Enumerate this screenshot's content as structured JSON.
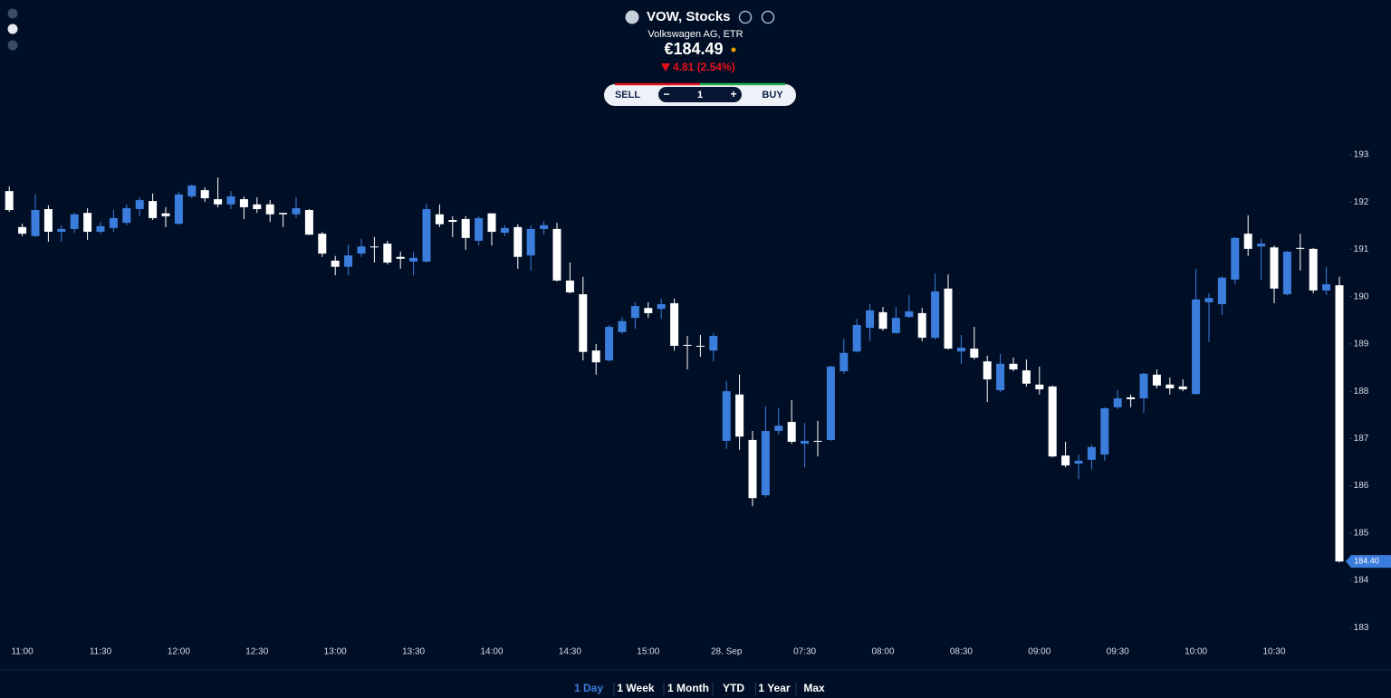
{
  "header": {
    "symbol": "VOW, Stocks",
    "name": "Volkswagen AG, ETR",
    "price": "€184.49",
    "change": "4.81 (2.54%)"
  },
  "trade": {
    "sell": "SELL",
    "minus": "−",
    "quantity": "1",
    "plus": "+",
    "buy": "BUY"
  },
  "ranges": [
    "1 Day",
    "1 Week",
    "1 Month",
    "YTD",
    "1 Year",
    "Max"
  ],
  "active_range": 0,
  "chart_data": {
    "type": "candlestick",
    "categories": [
      null,
      "11:00",
      null,
      null,
      null,
      null,
      null,
      "11:30",
      null,
      null,
      null,
      null,
      null,
      "12:00",
      null,
      null,
      null,
      null,
      null,
      "12:30",
      null,
      null,
      null,
      null,
      null,
      "13:00",
      null,
      null,
      null,
      null,
      null,
      "13:30",
      null,
      null,
      null,
      null,
      null,
      "14:00",
      null,
      null,
      null,
      null,
      null,
      "14:30",
      null,
      null,
      null,
      null,
      null,
      "15:00",
      null,
      null,
      null,
      null,
      null,
      "28. Sep",
      null,
      null,
      null,
      null,
      null,
      "07:30",
      null,
      null,
      null,
      null,
      null,
      "08:00",
      null,
      null,
      null,
      null,
      null,
      "08:30",
      null,
      null,
      null,
      null,
      null,
      "09:00",
      null,
      null,
      null,
      null,
      null,
      "09:30",
      null,
      null,
      null,
      null,
      null,
      "10:00",
      null,
      null,
      null,
      null,
      null,
      "10:30",
      null,
      null,
      null,
      null,
      null
    ],
    "open": [
      192.23,
      191.47,
      191.28,
      191.85,
      191.37,
      191.43,
      191.77,
      191.37,
      191.45,
      191.56,
      191.85,
      192.02,
      191.76,
      191.54,
      192.12,
      192.25,
      192.06,
      191.95,
      192.06,
      191.95,
      191.95,
      191.77,
      191.74,
      191.83,
      191.33,
      190.76,
      190.63,
      190.91,
      191.06,
      191.12,
      190.84,
      190.74,
      190.74,
      191.74,
      191.62,
      191.64,
      191.18,
      191.76,
      191.35,
      191.47,
      190.87,
      191.43,
      191.43,
      190.34,
      190.05,
      188.86,
      188.65,
      189.25,
      189.55,
      189.76,
      189.74,
      189.86,
      188.98,
      188.96,
      188.86,
      186.95,
      187.93,
      186.97,
      185.8,
      187.16,
      187.35,
      186.89,
      186.95,
      186.97,
      188.42,
      188.84,
      189.34,
      189.67,
      189.23,
      189.57,
      189.65,
      189.13,
      190.17,
      188.84,
      188.9,
      188.63,
      188.02,
      188.58,
      188.44,
      188.14,
      188.1,
      186.64,
      186.47,
      186.55,
      186.66,
      187.66,
      187.87,
      187.85,
      188.35,
      188.14,
      188.1,
      187.94,
      189.88,
      189.84,
      190.36,
      191.33,
      191.06,
      191.04,
      190.05,
      191.03,
      191.01,
      190.13,
      190.24
    ],
    "high": [
      192.33,
      191.54,
      192.16,
      191.93,
      191.51,
      191.77,
      191.87,
      191.58,
      191.83,
      191.95,
      192.1,
      192.18,
      191.89,
      192.21,
      192.37,
      192.31,
      192.52,
      192.23,
      192.12,
      192.1,
      192.04,
      191.77,
      192.1,
      191.85,
      191.37,
      190.86,
      191.1,
      191.22,
      191.26,
      191.18,
      190.95,
      190.95,
      191.97,
      191.95,
      191.7,
      191.7,
      191.7,
      191.76,
      191.51,
      191.53,
      191.51,
      191.6,
      191.56,
      190.72,
      190.42,
      189.0,
      189.4,
      189.57,
      189.88,
      189.88,
      189.96,
      189.96,
      189.17,
      189.19,
      189.23,
      188.21,
      188.35,
      187.16,
      187.68,
      187.64,
      187.81,
      187.33,
      187.37,
      188.54,
      189.11,
      189.53,
      189.84,
      189.78,
      189.78,
      190.03,
      189.76,
      190.49,
      190.47,
      189.19,
      189.36,
      188.75,
      188.79,
      188.71,
      188.67,
      188.52,
      188.12,
      186.93,
      186.66,
      186.87,
      187.66,
      188.02,
      187.93,
      188.39,
      188.46,
      188.29,
      188.25,
      190.59,
      190.07,
      190.43,
      191.26,
      191.72,
      191.22,
      191.08,
      190.97,
      191.33,
      191.03,
      190.63,
      190.42
    ],
    "low": [
      191.79,
      191.28,
      191.26,
      191.16,
      191.16,
      191.35,
      191.2,
      191.33,
      191.37,
      191.51,
      191.7,
      191.62,
      191.47,
      191.52,
      192.08,
      192.0,
      191.89,
      191.85,
      191.64,
      191.77,
      191.58,
      191.47,
      191.66,
      191.3,
      190.84,
      190.45,
      190.45,
      190.84,
      190.72,
      190.68,
      190.59,
      190.45,
      190.72,
      191.47,
      191.26,
      190.99,
      191.08,
      191.08,
      191.28,
      190.59,
      190.55,
      191.31,
      190.32,
      190.07,
      188.65,
      188.35,
      188.63,
      189.21,
      189.32,
      189.55,
      189.53,
      188.86,
      188.46,
      188.73,
      188.63,
      186.78,
      186.76,
      185.57,
      185.76,
      187.08,
      186.89,
      186.39,
      186.62,
      186.95,
      188.37,
      188.82,
      189.06,
      189.28,
      189.21,
      189.55,
      189.06,
      189.09,
      188.88,
      188.58,
      188.67,
      187.77,
      187.98,
      188.42,
      188.1,
      187.93,
      186.6,
      186.39,
      186.14,
      186.34,
      186.53,
      187.62,
      187.66,
      187.54,
      188.06,
      187.93,
      188.0,
      187.93,
      189.04,
      189.61,
      190.26,
      190.86,
      190.36,
      189.86,
      190.03,
      190.55,
      190.07,
      190.03,
      184.38
    ],
    "close": [
      191.83,
      191.33,
      191.83,
      191.37,
      191.43,
      191.74,
      191.37,
      191.49,
      191.66,
      191.87,
      192.04,
      191.66,
      191.7,
      192.16,
      192.35,
      192.08,
      191.95,
      192.12,
      191.89,
      191.85,
      191.74,
      191.74,
      191.87,
      191.31,
      190.91,
      190.63,
      190.87,
      191.06,
      191.04,
      190.72,
      190.8,
      190.82,
      191.85,
      191.53,
      191.58,
      191.24,
      191.66,
      191.37,
      191.45,
      190.84,
      191.43,
      191.51,
      190.34,
      190.09,
      188.83,
      188.61,
      189.36,
      189.48,
      189.8,
      189.65,
      189.84,
      188.96,
      188.96,
      188.94,
      189.17,
      188.0,
      187.04,
      185.74,
      187.16,
      187.27,
      186.93,
      186.95,
      186.93,
      188.52,
      188.81,
      189.4,
      189.71,
      189.32,
      189.55,
      189.69,
      189.13,
      190.11,
      188.9,
      188.92,
      188.71,
      188.25,
      188.58,
      188.46,
      188.16,
      188.04,
      186.62,
      186.43,
      186.53,
      186.82,
      187.64,
      187.85,
      187.83,
      188.37,
      188.12,
      188.06,
      188.04,
      189.94,
      189.97,
      190.4,
      191.24,
      191.01,
      191.12,
      190.17,
      190.95,
      191.01,
      190.13,
      190.26,
      184.4
    ],
    "last_label": "184.40",
    "up_color": "#3b7ddd",
    "down_color": "#ffffff",
    "ylim": [
      182.7,
      193.4
    ],
    "yticks": [
      183,
      184,
      185,
      186,
      187,
      188,
      189,
      190,
      191,
      192,
      193
    ]
  }
}
